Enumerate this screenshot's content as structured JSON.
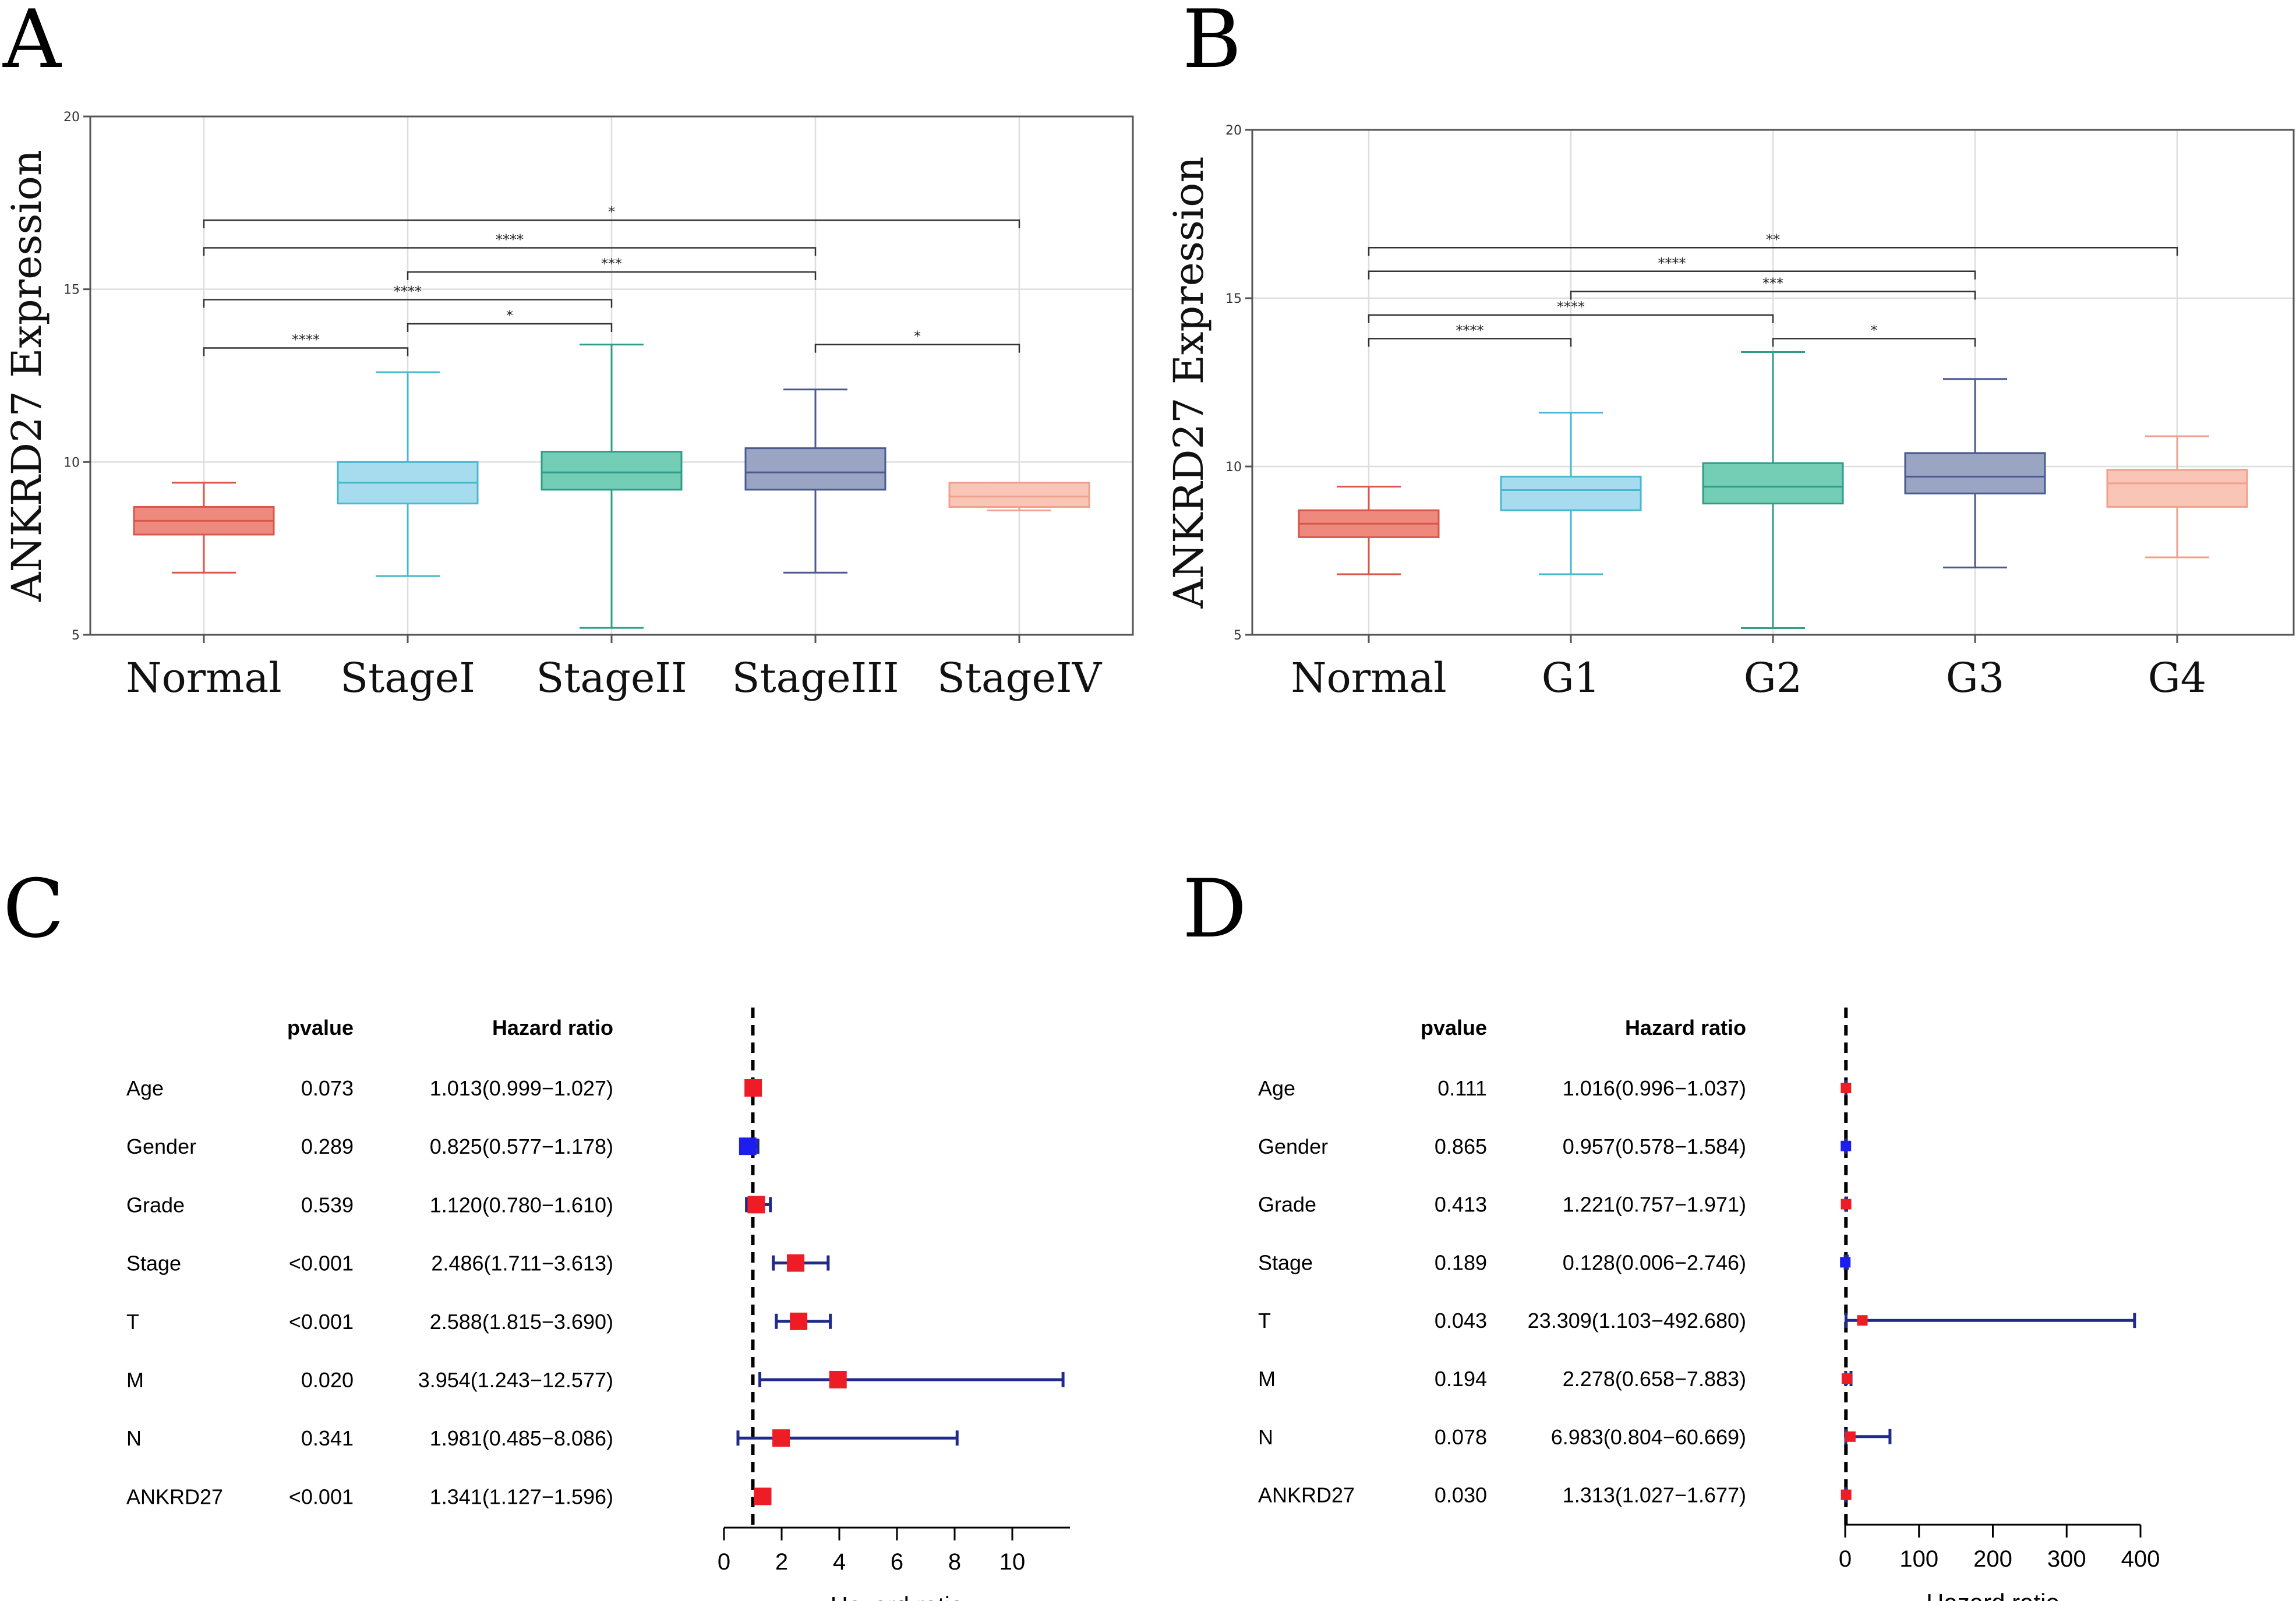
{
  "panel_letters": {
    "a": "A",
    "b": "B",
    "c": "C",
    "d": "D"
  },
  "colors": {
    "normal": "#ee8a7d",
    "normal_dark": "#d9564a",
    "group1": "#a6dced",
    "group1_dark": "#48b7cf",
    "group2": "#74cdb5",
    "group2_dark": "#2e9d87",
    "group3": "#9aa5c4",
    "group3_dark": "#4a5a8f",
    "group4": "#f8c5b6",
    "group4_dark": "#f0a08c",
    "risk": "#ee1c25",
    "protective": "#1d1df0",
    "ci": "#1f2a8a"
  },
  "chart_data": [
    {
      "panel": "A",
      "type": "box",
      "ylabel": "ANKRD27 Expression",
      "ylim": [
        5,
        20
      ],
      "yticks": [
        5,
        10,
        15,
        20
      ],
      "categories": [
        "Normal",
        "StageI",
        "StageII",
        "StageIII",
        "StageIV"
      ],
      "boxes": [
        {
          "category": "Normal",
          "min": 6.8,
          "q1": 7.9,
          "median": 8.3,
          "q3": 8.7,
          "max": 9.4
        },
        {
          "category": "StageI",
          "min": 6.7,
          "q1": 8.8,
          "median": 9.4,
          "q3": 10.0,
          "max": 12.6
        },
        {
          "category": "StageII",
          "min": 5.2,
          "q1": 9.2,
          "median": 9.7,
          "q3": 10.3,
          "max": 13.4
        },
        {
          "category": "StageIII",
          "min": 6.8,
          "q1": 9.2,
          "median": 9.7,
          "q3": 10.4,
          "max": 12.1
        },
        {
          "category": "StageIV",
          "min": 8.6,
          "q1": 8.7,
          "median": 9.0,
          "q3": 9.4,
          "max": 9.4
        }
      ],
      "comparisons": [
        {
          "from": "Normal",
          "to": "StageI",
          "label": "****",
          "y": 13.3
        },
        {
          "from": "StageI",
          "to": "StageII",
          "label": "*",
          "y": 14.0
        },
        {
          "from": "Normal",
          "to": "StageII",
          "label": "****",
          "y": 14.7
        },
        {
          "from": "StageI",
          "to": "StageIII",
          "label": "***",
          "y": 15.5
        },
        {
          "from": "Normal",
          "to": "StageIII",
          "label": "****",
          "y": 16.2
        },
        {
          "from": "Normal",
          "to": "StageIV",
          "label": "*",
          "y": 17.0
        },
        {
          "from": "StageIII",
          "to": "StageIV",
          "label": "*",
          "y": 13.4
        }
      ]
    },
    {
      "panel": "B",
      "type": "box",
      "ylabel": "ANKRD27 Expression",
      "ylim": [
        5,
        20
      ],
      "yticks": [
        5,
        10,
        15,
        20
      ],
      "categories": [
        "Normal",
        "G1",
        "G2",
        "G3",
        "G4"
      ],
      "boxes": [
        {
          "category": "Normal",
          "min": 6.8,
          "q1": 7.9,
          "median": 8.3,
          "q3": 8.7,
          "max": 9.4
        },
        {
          "category": "G1",
          "min": 6.8,
          "q1": 8.7,
          "median": 9.3,
          "q3": 9.7,
          "max": 11.6
        },
        {
          "category": "G2",
          "min": 5.2,
          "q1": 8.9,
          "median": 9.4,
          "q3": 10.1,
          "max": 13.4
        },
        {
          "category": "G3",
          "min": 7.0,
          "q1": 9.2,
          "median": 9.7,
          "q3": 10.4,
          "max": 12.6
        },
        {
          "category": "G4",
          "min": 7.3,
          "q1": 8.8,
          "median": 9.5,
          "q3": 9.9,
          "max": 10.9
        }
      ],
      "comparisons": [
        {
          "from": "Normal",
          "to": "G1",
          "label": "****",
          "y": 13.8
        },
        {
          "from": "G2",
          "to": "G3",
          "label": "*",
          "y": 13.8
        },
        {
          "from": "Normal",
          "to": "G2",
          "label": "****",
          "y": 14.5
        },
        {
          "from": "G1",
          "to": "G3",
          "label": "***",
          "y": 15.2
        },
        {
          "from": "Normal",
          "to": "G3",
          "label": "****",
          "y": 15.8
        },
        {
          "from": "Normal",
          "to": "G4",
          "label": "**",
          "y": 16.5
        }
      ]
    },
    {
      "panel": "C",
      "type": "forest",
      "header_pvalue": "pvalue",
      "header_hr": "Hazard ratio",
      "xlabel": "Hazard ratio",
      "xlim": [
        0,
        12
      ],
      "xticks": [
        0,
        2,
        4,
        6,
        8,
        10
      ],
      "xtick_labels": [
        "0",
        "2",
        "4",
        "6",
        "8",
        "10"
      ],
      "reference": 1,
      "rows": [
        {
          "name": "Age",
          "pvalue": "0.073",
          "hr_text": "1.013(0.999−1.027)",
          "hr": 1.013,
          "low": 0.999,
          "high": 1.027,
          "risk": true
        },
        {
          "name": "Gender",
          "pvalue": "0.289",
          "hr_text": "0.825(0.577−1.178)",
          "hr": 0.825,
          "low": 0.577,
          "high": 1.178,
          "risk": false
        },
        {
          "name": "Grade",
          "pvalue": "0.539",
          "hr_text": "1.120(0.780−1.610)",
          "hr": 1.12,
          "low": 0.78,
          "high": 1.61,
          "risk": true
        },
        {
          "name": "Stage",
          "pvalue": "<0.001",
          "hr_text": "2.486(1.711−3.613)",
          "hr": 2.486,
          "low": 1.711,
          "high": 3.613,
          "risk": true
        },
        {
          "name": "T",
          "pvalue": "<0.001",
          "hr_text": "2.588(1.815−3.690)",
          "hr": 2.588,
          "low": 1.815,
          "high": 3.69,
          "risk": true
        },
        {
          "name": "M",
          "pvalue": "0.020",
          "hr_text": "3.954(1.243−12.577)",
          "hr": 3.954,
          "low": 1.243,
          "high": 12.577,
          "risk": true
        },
        {
          "name": "N",
          "pvalue": "0.341",
          "hr_text": "1.981(0.485−8.086)",
          "hr": 1.981,
          "low": 0.485,
          "high": 8.086,
          "risk": true
        },
        {
          "name": "ANKRD27",
          "pvalue": "<0.001",
          "hr_text": "1.341(1.127−1.596)",
          "hr": 1.341,
          "low": 1.127,
          "high": 1.596,
          "risk": true
        }
      ]
    },
    {
      "panel": "D",
      "type": "forest",
      "header_pvalue": "pvalue",
      "header_hr": "Hazard ratio",
      "xlabel": "Hazard ratio",
      "xlim": [
        0,
        400
      ],
      "xticks": [
        0,
        100,
        200,
        300,
        400
      ],
      "xtick_labels": [
        "0",
        "100",
        "200",
        "300",
        "400"
      ],
      "reference": 1,
      "rows": [
        {
          "name": "Age",
          "pvalue": "0.111",
          "hr_text": "1.016(0.996−1.037)",
          "hr": 1.016,
          "low": 0.996,
          "high": 1.037,
          "risk": true
        },
        {
          "name": "Gender",
          "pvalue": "0.865",
          "hr_text": "0.957(0.578−1.584)",
          "hr": 0.957,
          "low": 0.578,
          "high": 1.584,
          "risk": false
        },
        {
          "name": "Grade",
          "pvalue": "0.413",
          "hr_text": "1.221(0.757−1.971)",
          "hr": 1.221,
          "low": 0.757,
          "high": 1.971,
          "risk": true
        },
        {
          "name": "Stage",
          "pvalue": "0.189",
          "hr_text": "0.128(0.006−2.746)",
          "hr": 0.128,
          "low": 0.006,
          "high": 2.746,
          "risk": false
        },
        {
          "name": "T",
          "pvalue": "0.043",
          "hr_text": "23.309(1.103−492.680)",
          "hr": 23.309,
          "low": 1.103,
          "high": 492.68,
          "risk": true
        },
        {
          "name": "M",
          "pvalue": "0.194",
          "hr_text": "2.278(0.658−7.883)",
          "hr": 2.278,
          "low": 0.658,
          "high": 7.883,
          "risk": true
        },
        {
          "name": "N",
          "pvalue": "0.078",
          "hr_text": "6.983(0.804−60.669)",
          "hr": 6.983,
          "low": 0.804,
          "high": 60.669,
          "risk": true
        },
        {
          "name": "ANKRD27",
          "pvalue": "0.030",
          "hr_text": "1.313(1.027−1.677)",
          "hr": 1.313,
          "low": 1.027,
          "high": 1.677,
          "risk": true
        }
      ]
    }
  ]
}
